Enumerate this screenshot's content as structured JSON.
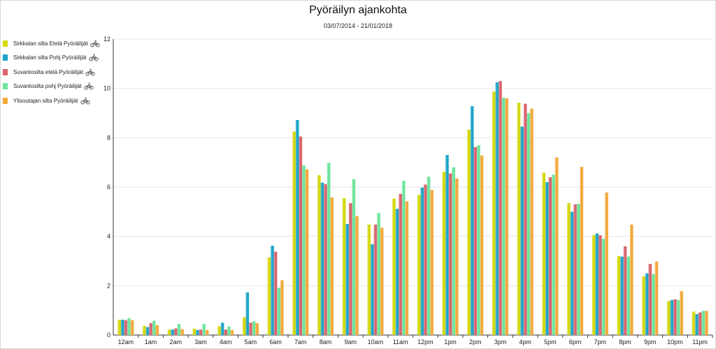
{
  "chart_data": {
    "type": "bar",
    "title": "Pyöräilyn ajankohta",
    "subtitle": "03/07/2014 - 21/01/2018",
    "xlabel": "",
    "ylabel": "",
    "ylim": [
      0,
      12
    ],
    "yticks": [
      0,
      2,
      4,
      6,
      8,
      10,
      12
    ],
    "grid": true,
    "legend_position": "left",
    "categories": [
      "12am",
      "1am",
      "2am",
      "3am",
      "4am",
      "5am",
      "6am",
      "7am",
      "8am",
      "9am",
      "10am",
      "11am",
      "12pm",
      "1pm",
      "2pm",
      "3pm",
      "4pm",
      "5pm",
      "6pm",
      "7pm",
      "8pm",
      "9pm",
      "10pm",
      "11pm"
    ],
    "series": [
      {
        "name": "Sirkkalan silta Etelä Pyöräilijät",
        "color": "#d4d80e",
        "values": [
          0.62,
          0.37,
          0.22,
          0.26,
          0.36,
          0.72,
          3.15,
          8.25,
          6.48,
          5.55,
          4.48,
          5.53,
          5.68,
          6.62,
          8.33,
          9.87,
          9.42,
          6.58,
          5.35,
          4.05,
          3.2,
          2.38,
          1.38,
          0.95
        ]
      },
      {
        "name": "Sirkkalan silta Pohj Pyöräilijät",
        "color": "#1ea5c8",
        "values": [
          0.62,
          0.32,
          0.22,
          0.2,
          0.5,
          1.73,
          3.62,
          8.72,
          6.18,
          4.5,
          3.68,
          5.12,
          5.98,
          7.3,
          9.28,
          10.25,
          8.45,
          6.2,
          5.0,
          4.12,
          3.18,
          2.5,
          1.42,
          0.85
        ]
      },
      {
        "name": "Suvantosilta etelä Pyöräilijät",
        "color": "#d9646f",
        "values": [
          0.6,
          0.48,
          0.27,
          0.22,
          0.22,
          0.5,
          3.38,
          8.05,
          6.12,
          5.35,
          4.48,
          5.72,
          6.1,
          6.55,
          7.62,
          10.3,
          9.38,
          6.4,
          5.3,
          4.05,
          3.6,
          2.88,
          1.45,
          0.92
        ]
      },
      {
        "name": "Suvantosilta pohj Pyöräilijät",
        "color": "#6de59c",
        "values": [
          0.68,
          0.58,
          0.45,
          0.45,
          0.35,
          0.56,
          1.92,
          6.88,
          6.98,
          6.32,
          4.95,
          6.25,
          6.42,
          6.8,
          7.7,
          9.62,
          9.0,
          6.5,
          5.32,
          3.9,
          3.18,
          2.48,
          1.42,
          0.98
        ]
      },
      {
        "name": "Ylisoutajan silta Pyöräilijät",
        "color": "#f2a93b",
        "values": [
          0.6,
          0.4,
          0.24,
          0.2,
          0.2,
          0.48,
          2.22,
          6.72,
          5.58,
          4.82,
          4.35,
          5.42,
          5.88,
          6.35,
          7.28,
          9.6,
          9.18,
          7.2,
          6.82,
          5.78,
          4.48,
          2.98,
          1.78,
          0.98
        ]
      }
    ]
  }
}
